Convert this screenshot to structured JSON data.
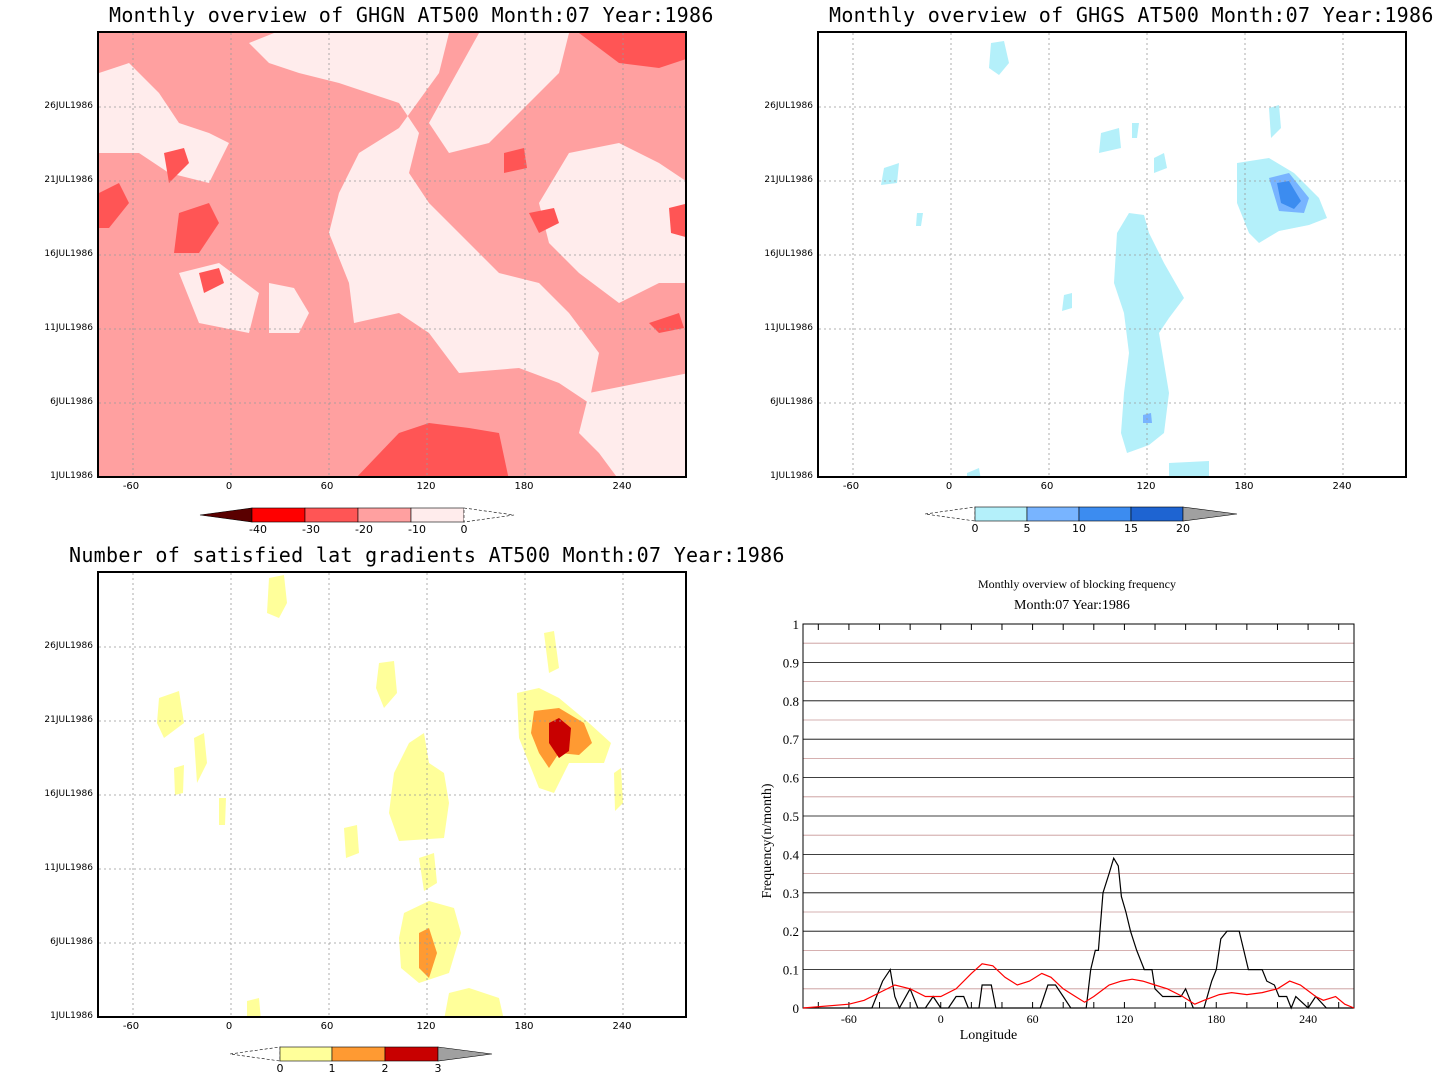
{
  "panels": {
    "ghgn": {
      "title": "Monthly overview of GHGN AT500 Month:07 Year:1986",
      "yticks": [
        "26JUL1986",
        "21JUL1986",
        "16JUL1986",
        "11JUL1986",
        "6JUL1986",
        "1JUL1986"
      ],
      "xticks": [
        "-60",
        "0",
        "60",
        "120",
        "180",
        "240"
      ],
      "colorbar": {
        "labels": [
          "-40",
          "-30",
          "-20",
          "-10",
          "0"
        ],
        "colors": [
          "#5a0000",
          "#ff0000",
          "#ff5555",
          "#ffa0a0",
          "#ffecec"
        ]
      }
    },
    "ghgs": {
      "title": "Monthly overview of GHGS AT500 Month:07 Year:1986",
      "yticks": [
        "26JUL1986",
        "21JUL1986",
        "16JUL1986",
        "11JUL1986",
        "6JUL1986",
        "1JUL1986"
      ],
      "xticks": [
        "-60",
        "0",
        "60",
        "120",
        "180",
        "240"
      ],
      "colorbar": {
        "labels": [
          "0",
          "5",
          "10",
          "15",
          "20"
        ],
        "colors": [
          "#b4f0fa",
          "#78b4ff",
          "#3c8cf0",
          "#1e64d2",
          "#a0a0a0"
        ]
      }
    },
    "gradients": {
      "title": "Number of satisfied lat gradients AT500 Month:07 Year:1986",
      "yticks": [
        "26JUL1986",
        "21JUL1986",
        "16JUL1986",
        "11JUL1986",
        "6JUL1986",
        "1JUL1986"
      ],
      "xticks": [
        "-60",
        "0",
        "60",
        "120",
        "180",
        "240"
      ],
      "colorbar": {
        "labels": [
          "0",
          "1",
          "2",
          "3"
        ],
        "colors": [
          "#ffff9a",
          "#ff9a32",
          "#c80000",
          "#a0a0a0"
        ]
      }
    },
    "frequency": {
      "title": "Monthly overview of blocking frequency",
      "subtitle": "Month:07 Year:1986"
    }
  },
  "chart_data": [
    {
      "type": "heatmap",
      "title": "Monthly overview of GHGN AT500 Month:07 Year:1986",
      "x_ticks": [
        -60,
        0,
        60,
        120,
        180,
        240
      ],
      "y_ticks": [
        "1JUL1986",
        "6JUL1986",
        "11JUL1986",
        "16JUL1986",
        "21JUL1986",
        "26JUL1986"
      ],
      "levels": [
        -40,
        -30,
        -20,
        -10,
        0
      ]
    },
    {
      "type": "heatmap",
      "title": "Monthly overview of GHGS AT500 Month:07 Year:1986",
      "x_ticks": [
        -60,
        0,
        60,
        120,
        180,
        240
      ],
      "y_ticks": [
        "1JUL1986",
        "6JUL1986",
        "11JUL1986",
        "16JUL1986",
        "21JUL1986",
        "26JUL1986"
      ],
      "levels": [
        0,
        5,
        10,
        15,
        20
      ]
    },
    {
      "type": "heatmap",
      "title": "Number of satisfied lat gradients AT500 Month:07 Year:1986",
      "x_ticks": [
        -60,
        0,
        60,
        120,
        180,
        240
      ],
      "y_ticks": [
        "1JUL1986",
        "6JUL1986",
        "11JUL1986",
        "16JUL1986",
        "21JUL1986",
        "26JUL1986"
      ],
      "levels": [
        0,
        1,
        2,
        3
      ]
    },
    {
      "type": "line",
      "title": "Monthly overview of blocking frequency",
      "subtitle": "Month:07 Year:1986",
      "xlabel": "Longitude",
      "ylabel": "Frequency(n/month)",
      "xlim": [
        -90,
        270
      ],
      "ylim": [
        0,
        1
      ],
      "x_ticks": [
        -60,
        0,
        60,
        120,
        180,
        240
      ],
      "y_ticks": [
        0,
        0.1,
        0.2,
        0.3,
        0.4,
        0.5,
        0.6,
        0.7,
        0.8,
        0.9,
        1
      ],
      "grid": true,
      "series": [
        {
          "color": "#000000",
          "points": [
            [
              -90,
              0
            ],
            [
              -45,
              0
            ],
            [
              -38,
              0.07
            ],
            [
              -33,
              0.1
            ],
            [
              -30,
              0.03
            ],
            [
              -27,
              0
            ],
            [
              -20,
              0.05
            ],
            [
              -15,
              0
            ],
            [
              -10,
              0
            ],
            [
              -5,
              0.03
            ],
            [
              0,
              0
            ],
            [
              5,
              0
            ],
            [
              10,
              0.03
            ],
            [
              15,
              0.03
            ],
            [
              18,
              0
            ],
            [
              25,
              0
            ],
            [
              27,
              0.06
            ],
            [
              33,
              0.06
            ],
            [
              36,
              0
            ],
            [
              40,
              0
            ],
            [
              45,
              0
            ],
            [
              55,
              0
            ],
            [
              60,
              0
            ],
            [
              65,
              0
            ],
            [
              70,
              0.06
            ],
            [
              75,
              0.06
            ],
            [
              80,
              0.03
            ],
            [
              85,
              0
            ],
            [
              95,
              0
            ],
            [
              98,
              0.1
            ],
            [
              101,
              0.15
            ],
            [
              103,
              0.15
            ],
            [
              106,
              0.3
            ],
            [
              110,
              0.35
            ],
            [
              113,
              0.39
            ],
            [
              116,
              0.37
            ],
            [
              118,
              0.29
            ],
            [
              121,
              0.25
            ],
            [
              124,
              0.2
            ],
            [
              128,
              0.15
            ],
            [
              133,
              0.1
            ],
            [
              138,
              0.1
            ],
            [
              140,
              0.05
            ],
            [
              145,
              0.03
            ],
            [
              150,
              0.03
            ],
            [
              157,
              0.03
            ],
            [
              160,
              0.05
            ],
            [
              165,
              0
            ],
            [
              172,
              0
            ],
            [
              177,
              0.07
            ],
            [
              180,
              0.1
            ],
            [
              183,
              0.18
            ],
            [
              187,
              0.2
            ],
            [
              195,
              0.2
            ],
            [
              198,
              0.15
            ],
            [
              201,
              0.1
            ],
            [
              210,
              0.1
            ],
            [
              213,
              0.07
            ],
            [
              218,
              0.06
            ],
            [
              221,
              0.03
            ],
            [
              226,
              0.03
            ],
            [
              229,
              0
            ],
            [
              232,
              0.03
            ],
            [
              240,
              0
            ],
            [
              245,
              0.03
            ],
            [
              252,
              0
            ],
            [
              270,
              0
            ]
          ]
        },
        {
          "color": "#ff0000",
          "points": [
            [
              -90,
              0
            ],
            [
              -60,
              0.01
            ],
            [
              -50,
              0.02
            ],
            [
              -40,
              0.04
            ],
            [
              -30,
              0.06
            ],
            [
              -20,
              0.05
            ],
            [
              -10,
              0.03
            ],
            [
              0,
              0.03
            ],
            [
              10,
              0.05
            ],
            [
              20,
              0.09
            ],
            [
              27,
              0.115
            ],
            [
              34,
              0.11
            ],
            [
              42,
              0.08
            ],
            [
              50,
              0.06
            ],
            [
              58,
              0.07
            ],
            [
              66,
              0.09
            ],
            [
              72,
              0.08
            ],
            [
              80,
              0.05
            ],
            [
              88,
              0.03
            ],
            [
              94,
              0.015
            ],
            [
              100,
              0.03
            ],
            [
              110,
              0.06
            ],
            [
              118,
              0.07
            ],
            [
              125,
              0.075
            ],
            [
              132,
              0.07
            ],
            [
              140,
              0.06
            ],
            [
              148,
              0.05
            ],
            [
              158,
              0.03
            ],
            [
              166,
              0.01
            ],
            [
              172,
              0.02
            ],
            [
              182,
              0.035
            ],
            [
              190,
              0.04
            ],
            [
              200,
              0.035
            ],
            [
              210,
              0.04
            ],
            [
              220,
              0.05
            ],
            [
              228,
              0.07
            ],
            [
              235,
              0.06
            ],
            [
              245,
              0.03
            ],
            [
              250,
              0.02
            ],
            [
              258,
              0.03
            ],
            [
              264,
              0.01
            ],
            [
              270,
              0
            ]
          ]
        }
      ]
    }
  ]
}
